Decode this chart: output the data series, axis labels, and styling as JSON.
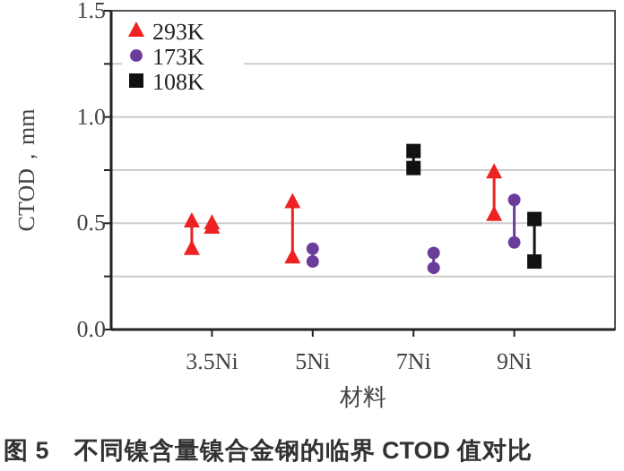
{
  "chart_data": {
    "type": "scatter",
    "title": "图 5　不同镍含量镍合金钢的临界 CTOD 值对比",
    "xlabel": "材料",
    "ylabel": "CTOD，mm",
    "categories": [
      null,
      null,
      null,
      null,
      "3.5Ni",
      null,
      null,
      null,
      null,
      "5Ni",
      null,
      null,
      null,
      null,
      "7Ni",
      null,
      null,
      null,
      null,
      "9Ni",
      null,
      null,
      null,
      null
    ],
    "ylim": [
      0,
      1.5
    ],
    "yticks": [
      {
        "value": 0,
        "label": "0.0"
      },
      {
        "value": 0.25,
        "label": null
      },
      {
        "value": 0.5,
        "label": "0.5"
      },
      {
        "value": 0.75,
        "label": null
      },
      {
        "value": 1,
        "label": "1.0"
      },
      {
        "value": 1.25,
        "label": null
      },
      {
        "value": 1.5,
        "label": "1.5"
      }
    ],
    "grid": "y",
    "legend": "top left",
    "series": [
      {
        "name": "293K",
        "color": "#ee2222",
        "marker": "triangle",
        "values": [
          null,
          null,
          null,
          0.51,
          0.5,
          null,
          null,
          null,
          0.6,
          null,
          null,
          null,
          null,
          null,
          null,
          null,
          null,
          null,
          0.74,
          null,
          null,
          null,
          null,
          null
        ]
      },
      {
        "color": "#ee2222",
        "marker": "triangle",
        "values": [
          null,
          null,
          null,
          0.38,
          0.48,
          null,
          null,
          null,
          0.34,
          null,
          null,
          null,
          null,
          null,
          null,
          null,
          null,
          null,
          0.54,
          null,
          null,
          null,
          null,
          null
        ]
      },
      {
        "name": "173K",
        "color": "#6a3d9a",
        "marker": "circle",
        "values": [
          null,
          null,
          null,
          null,
          null,
          null,
          null,
          null,
          null,
          0.38,
          null,
          null,
          null,
          null,
          null,
          0.36,
          null,
          null,
          null,
          0.61,
          null,
          null,
          null,
          null
        ]
      },
      {
        "color": "#6a3d9a",
        "marker": "circle",
        "values": [
          null,
          null,
          null,
          null,
          null,
          null,
          null,
          null,
          null,
          0.32,
          null,
          null,
          null,
          null,
          null,
          0.29,
          null,
          null,
          null,
          0.41,
          null,
          null,
          null,
          null
        ]
      },
      {
        "name": "108K",
        "color": "#111111",
        "marker": "square",
        "values": [
          null,
          null,
          null,
          null,
          null,
          null,
          null,
          null,
          null,
          null,
          null,
          null,
          null,
          null,
          0.84,
          null,
          null,
          null,
          null,
          null,
          0.52,
          null,
          null,
          null
        ]
      },
      {
        "color": "#111111",
        "marker": "square",
        "values": [
          null,
          null,
          null,
          null,
          null,
          null,
          null,
          null,
          null,
          null,
          null,
          null,
          null,
          null,
          0.76,
          null,
          null,
          null,
          null,
          null,
          0.32,
          null,
          null,
          null
        ]
      }
    ]
  }
}
